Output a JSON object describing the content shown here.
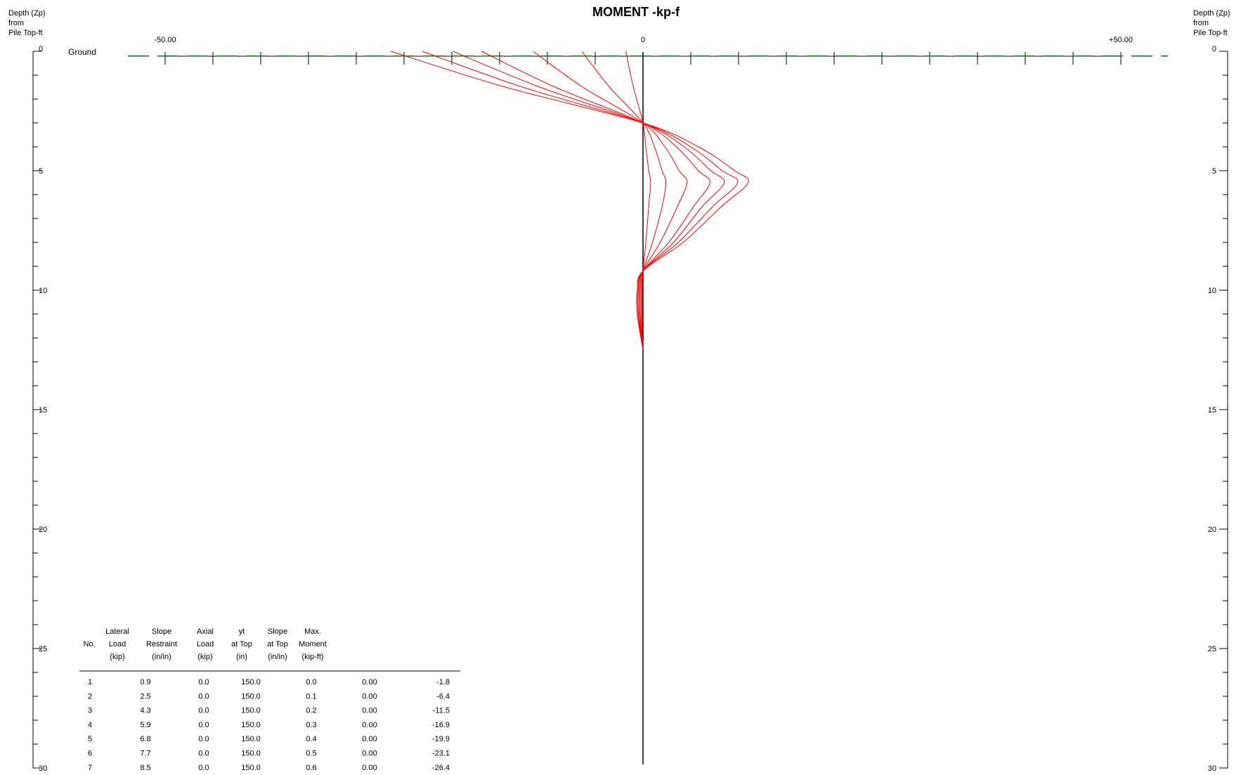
{
  "chart_data": {
    "type": "line",
    "title": "MOMENT -kp-f",
    "xlabel": "",
    "ylabel": "Depth (Zp) from Pile Top-ft",
    "ylabel_lines": [
      "Depth (Zp)",
      "from",
      "Pile Top-ft"
    ],
    "xlim": [
      -50,
      50
    ],
    "ylim": [
      0,
      30
    ],
    "y_inverted": true,
    "x_tick_labels": [
      {
        "value": -50,
        "label": "-50.00"
      },
      {
        "value": 0,
        "label": "0"
      },
      {
        "value": 50,
        "label": "+50.00"
      }
    ],
    "y_tick_labels": [
      "0",
      "5",
      "10",
      "15",
      "20",
      "25",
      "30"
    ],
    "ground_label": "Ground",
    "ground_depth": 0.2,
    "colors": {
      "curves": "#ff0000",
      "ground": "#008000",
      "axes": "#000000"
    },
    "series": [
      {
        "x": [
          -1.8,
          -1.0,
          0.0,
          0.3,
          0.6,
          0.8,
          0.6,
          0.3,
          0.0,
          -0.1,
          -0.1,
          0.0
        ],
        "y": [
          0,
          1.5,
          3.0,
          4.0,
          5.0,
          5.5,
          6.5,
          8.0,
          9.2,
          10.0,
          11.0,
          12.5
        ]
      },
      {
        "x": [
          -6.4,
          -3.5,
          0.0,
          1.2,
          2.0,
          2.4,
          2.0,
          1.0,
          0.0,
          -0.2,
          -0.2,
          0.0
        ],
        "y": [
          0,
          1.5,
          3.0,
          4.0,
          5.0,
          5.5,
          6.5,
          8.0,
          9.2,
          10.0,
          11.0,
          12.5
        ]
      },
      {
        "x": [
          -11.5,
          -6.3,
          0.0,
          2.3,
          3.8,
          4.6,
          3.6,
          1.8,
          0.0,
          -0.3,
          -0.3,
          0.0
        ],
        "y": [
          0,
          1.5,
          3.0,
          4.0,
          5.0,
          5.5,
          6.5,
          8.0,
          9.2,
          10.0,
          11.0,
          12.5
        ]
      },
      {
        "x": [
          -16.9,
          -9.2,
          0.0,
          3.5,
          5.8,
          7.0,
          5.3,
          2.7,
          0.0,
          -0.4,
          -0.4,
          0.0
        ],
        "y": [
          0,
          1.5,
          3.0,
          4.0,
          5.0,
          5.5,
          6.5,
          8.0,
          9.2,
          10.0,
          11.0,
          12.5
        ]
      },
      {
        "x": [
          -19.9,
          -10.8,
          0.0,
          4.3,
          7.1,
          8.5,
          6.2,
          3.2,
          0.0,
          -0.5,
          -0.5,
          0.0
        ],
        "y": [
          0,
          1.5,
          3.0,
          4.0,
          5.0,
          5.5,
          6.5,
          8.0,
          9.2,
          10.0,
          11.0,
          12.5
        ]
      },
      {
        "x": [
          -23.1,
          -12.6,
          0.0,
          5.0,
          8.3,
          9.9,
          7.3,
          3.7,
          0.0,
          -0.5,
          -0.5,
          0.0
        ],
        "y": [
          0,
          1.5,
          3.0,
          4.0,
          5.0,
          5.5,
          6.5,
          8.0,
          9.2,
          10.0,
          11.0,
          12.5
        ]
      },
      {
        "x": [
          -26.4,
          -14.4,
          0.0,
          5.8,
          9.6,
          11.0,
          8.2,
          4.2,
          0.0,
          -0.6,
          -0.6,
          0.0
        ],
        "y": [
          0,
          1.5,
          3.0,
          4.0,
          5.0,
          5.5,
          6.5,
          8.0,
          9.2,
          10.0,
          11.0,
          12.5
        ]
      }
    ],
    "table": {
      "headers": [
        [
          "",
          "Lateral",
          "Slope",
          "Axial",
          "yt",
          "Slope",
          "Max."
        ],
        [
          "No.",
          "Load",
          "Restraint",
          "Load",
          "at Top",
          "at Top",
          "Moment"
        ],
        [
          "",
          "(kip)",
          "(in/in)",
          "(kip)",
          "(in)",
          "(in/in)",
          "(kip-ft)"
        ]
      ],
      "rows": [
        [
          "1",
          "0.9",
          "0.0",
          "150.0",
          "0.0",
          "0.00",
          "-1.8"
        ],
        [
          "2",
          "2.5",
          "0.0",
          "150.0",
          "0.1",
          "0.00",
          "-6.4"
        ],
        [
          "3",
          "4.3",
          "0.0",
          "150.0",
          "0.2",
          "0.00",
          "-11.5"
        ],
        [
          "4",
          "5.9",
          "0.0",
          "150.0",
          "0.3",
          "0.00",
          "-16.9"
        ],
        [
          "5",
          "6.8",
          "0.0",
          "150.0",
          "0.4",
          "0.00",
          "-19.9"
        ],
        [
          "6",
          "7.7",
          "0.0",
          "150.0",
          "0.5",
          "0.00",
          "-23.1"
        ],
        [
          "7",
          "8.5",
          "0.0",
          "150.0",
          "0.6",
          "0.00",
          "-26.4"
        ]
      ]
    }
  }
}
